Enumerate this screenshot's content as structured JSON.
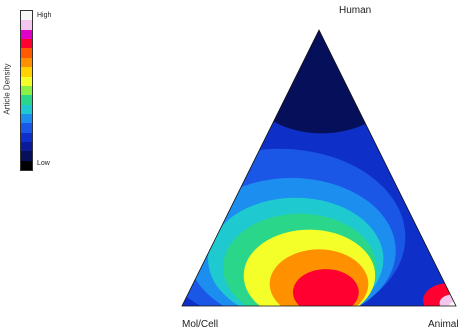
{
  "chart_data": {
    "type": "heatmap",
    "subtype": "ternary",
    "vertices": {
      "top": "Human",
      "left": "Mol/Cell",
      "right": "Animal"
    },
    "colorbar": {
      "title": "Article Density",
      "high_label": "High",
      "low_label": "Low",
      "colors": [
        "#f7f7f7",
        "#f3c6ee",
        "#e100c8",
        "#ff0030",
        "#ff5a00",
        "#ff9000",
        "#ffd200",
        "#f4ff2a",
        "#8bf046",
        "#29d68a",
        "#1ec9cf",
        "#1c8ef0",
        "#1a57e6",
        "#0f2fc9",
        "#0b1a98",
        "#06105a",
        "#000000"
      ]
    },
    "density_blobs": [
      {
        "a": 0.82,
        "b": 0.08,
        "c": 0.1,
        "level": 15,
        "r": 0.28
      },
      {
        "a": 0.25,
        "b": 0.52,
        "c": 0.23,
        "level": 12,
        "r": 0.46
      },
      {
        "a": 0.2,
        "b": 0.5,
        "c": 0.3,
        "level": 11,
        "r": 0.38
      },
      {
        "a": 0.17,
        "b": 0.5,
        "c": 0.33,
        "level": 10,
        "r": 0.32
      },
      {
        "a": 0.14,
        "b": 0.5,
        "c": 0.36,
        "level": 9,
        "r": 0.28
      },
      {
        "a": 0.11,
        "b": 0.48,
        "c": 0.41,
        "level": 7,
        "r": 0.24
      },
      {
        "a": 0.08,
        "b": 0.46,
        "c": 0.46,
        "level": 5,
        "r": 0.18
      },
      {
        "a": 0.05,
        "b": 0.45,
        "c": 0.5,
        "level": 3,
        "r": 0.12
      },
      {
        "a": 0.02,
        "b": 0.02,
        "c": 0.96,
        "level": 3,
        "r": 0.09
      },
      {
        "a": 0.01,
        "b": 0.01,
        "c": 0.98,
        "level": 1,
        "r": 0.045
      },
      {
        "a": 0.0,
        "b": 0.0,
        "c": 1.0,
        "level": 0,
        "r": 0.025
      }
    ]
  }
}
